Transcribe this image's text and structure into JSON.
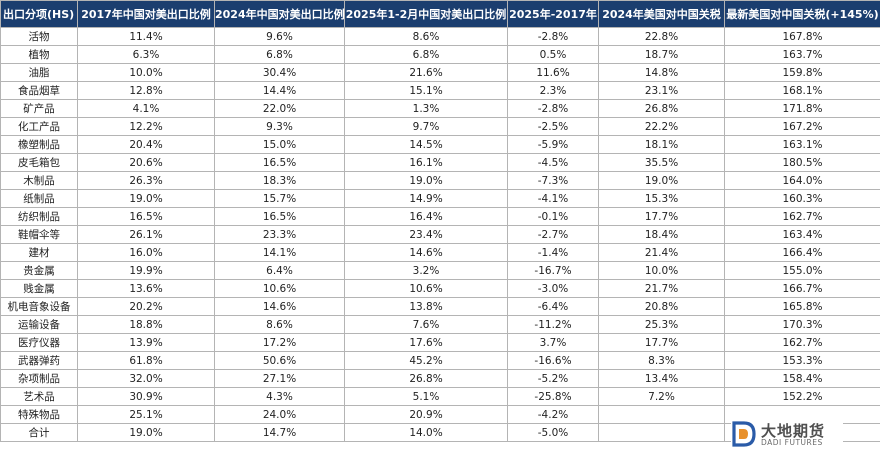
{
  "table": {
    "headers": [
      "出口分项(HS)",
      "2017年中国对美出口比例",
      "2024年中国对美出口比例",
      "2025年1-2月中国对美出口比例",
      "2025年-2017年",
      "2024年美国对中国关税",
      "最新美国对中国关税(+145%)"
    ],
    "rows": [
      [
        "活物",
        "11.4%",
        "9.6%",
        "8.6%",
        "-2.8%",
        "22.8%",
        "167.8%"
      ],
      [
        "植物",
        "6.3%",
        "6.8%",
        "6.8%",
        "0.5%",
        "18.7%",
        "163.7%"
      ],
      [
        "油脂",
        "10.0%",
        "30.4%",
        "21.6%",
        "11.6%",
        "14.8%",
        "159.8%"
      ],
      [
        "食品烟草",
        "12.8%",
        "14.4%",
        "15.1%",
        "2.3%",
        "23.1%",
        "168.1%"
      ],
      [
        "矿产品",
        "4.1%",
        "22.0%",
        "1.3%",
        "-2.8%",
        "26.8%",
        "171.8%"
      ],
      [
        "化工产品",
        "12.2%",
        "9.3%",
        "9.7%",
        "-2.5%",
        "22.2%",
        "167.2%"
      ],
      [
        "橡塑制品",
        "20.4%",
        "15.0%",
        "14.5%",
        "-5.9%",
        "18.1%",
        "163.1%"
      ],
      [
        "皮毛箱包",
        "20.6%",
        "16.5%",
        "16.1%",
        "-4.5%",
        "35.5%",
        "180.5%"
      ],
      [
        "木制品",
        "26.3%",
        "18.3%",
        "19.0%",
        "-7.3%",
        "19.0%",
        "164.0%"
      ],
      [
        "纸制品",
        "19.0%",
        "15.7%",
        "14.9%",
        "-4.1%",
        "15.3%",
        "160.3%"
      ],
      [
        "纺织制品",
        "16.5%",
        "16.5%",
        "16.4%",
        "-0.1%",
        "17.7%",
        "162.7%"
      ],
      [
        "鞋帽伞等",
        "26.1%",
        "23.3%",
        "23.4%",
        "-2.7%",
        "18.4%",
        "163.4%"
      ],
      [
        "建材",
        "16.0%",
        "14.1%",
        "14.6%",
        "-1.4%",
        "21.4%",
        "166.4%"
      ],
      [
        "贵金属",
        "19.9%",
        "6.4%",
        "3.2%",
        "-16.7%",
        "10.0%",
        "155.0%"
      ],
      [
        "贱金属",
        "13.6%",
        "10.6%",
        "10.6%",
        "-3.0%",
        "21.7%",
        "166.7%"
      ],
      [
        "机电音象设备",
        "20.2%",
        "14.6%",
        "13.8%",
        "-6.4%",
        "20.8%",
        "165.8%"
      ],
      [
        "运输设备",
        "18.8%",
        "8.6%",
        "7.6%",
        "-11.2%",
        "25.3%",
        "170.3%"
      ],
      [
        "医疗仪器",
        "13.9%",
        "17.2%",
        "17.6%",
        "3.7%",
        "17.7%",
        "162.7%"
      ],
      [
        "武器弹药",
        "61.8%",
        "50.6%",
        "45.2%",
        "-16.6%",
        "8.3%",
        "153.3%"
      ],
      [
        "杂项制品",
        "32.0%",
        "27.1%",
        "26.8%",
        "-5.2%",
        "13.4%",
        "158.4%"
      ],
      [
        "艺术品",
        "30.9%",
        "4.3%",
        "5.1%",
        "-25.8%",
        "7.2%",
        "152.2%"
      ],
      [
        "特殊物品",
        "25.1%",
        "24.0%",
        "20.9%",
        "-4.2%",
        "",
        ""
      ],
      [
        "合计",
        "19.0%",
        "14.7%",
        "14.0%",
        "-5.0%",
        "",
        ""
      ]
    ]
  },
  "watermark": {
    "name_cn": "大地期货",
    "name_en": "DADI FUTURES",
    "icon": "dadi-logo-icon",
    "color_blue": "#2a5ba8",
    "color_orange": "#e8912c"
  },
  "colors": {
    "header_bg": "#1b3e6f",
    "header_text": "#ffffff",
    "grid": "#b4b4b4"
  }
}
